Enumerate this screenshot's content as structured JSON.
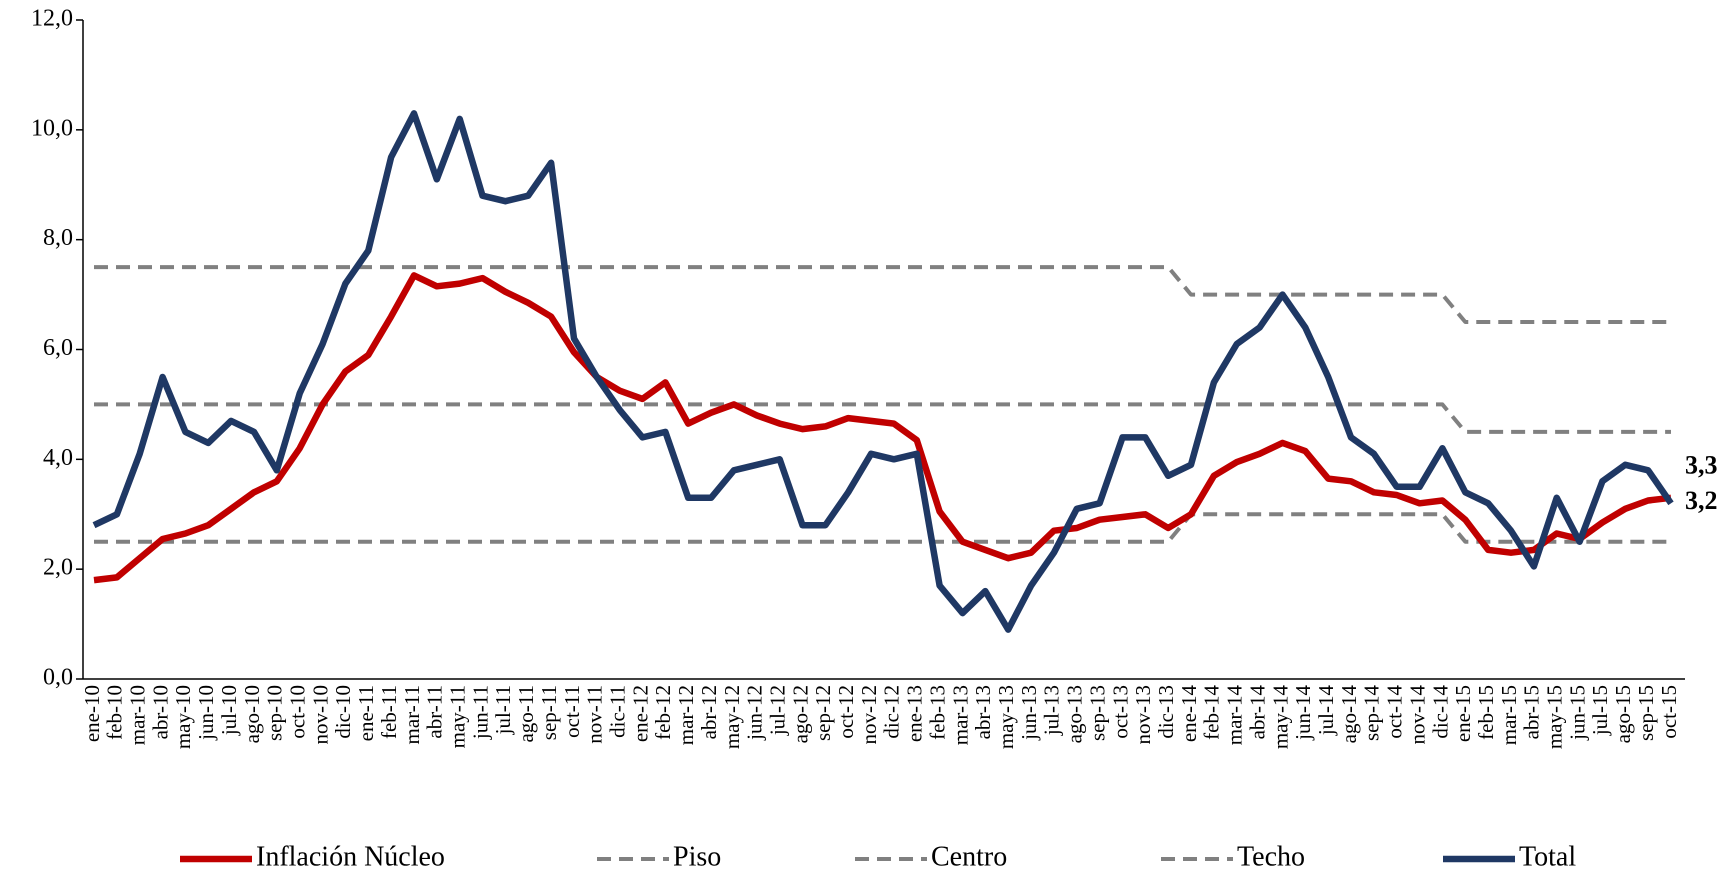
{
  "chart_data": {
    "type": "line",
    "categories": [
      "ene-10",
      "feb-10",
      "mar-10",
      "abr-10",
      "may-10",
      "jun-10",
      "jul-10",
      "ago-10",
      "sep-10",
      "oct-10",
      "nov-10",
      "dic-10",
      "ene-11",
      "feb-11",
      "mar-11",
      "abr-11",
      "may-11",
      "jun-11",
      "jul-11",
      "ago-11",
      "sep-11",
      "oct-11",
      "nov-11",
      "dic-11",
      "ene-12",
      "feb-12",
      "mar-12",
      "abr-12",
      "may-12",
      "jun-12",
      "jul-12",
      "ago-12",
      "sep-12",
      "oct-12",
      "nov-12",
      "dic-12",
      "ene-13",
      "feb-13",
      "mar-13",
      "abr-13",
      "may-13",
      "jun-13",
      "jul-13",
      "ago-13",
      "sep-13",
      "oct-13",
      "nov-13",
      "dic-13",
      "ene-14",
      "feb-14",
      "mar-14",
      "abr-14",
      "may-14",
      "jun-14",
      "jul-14",
      "ago-14",
      "sep-14",
      "oct-14",
      "nov-14",
      "dic-14",
      "ene-15",
      "feb-15",
      "mar-15",
      "abr-15",
      "may-15",
      "jun-15",
      "jul-15",
      "ago-15",
      "sep-15",
      "oct-15"
    ],
    "ylim": [
      0,
      12
    ],
    "yticks": [
      {
        "value": 0,
        "label": "0,0"
      },
      {
        "value": 2,
        "label": "2,0"
      },
      {
        "value": 4,
        "label": "4,0"
      },
      {
        "value": 6,
        "label": "6,0"
      },
      {
        "value": 8,
        "label": "8,0"
      },
      {
        "value": 10,
        "label": "10,0"
      },
      {
        "value": 12,
        "label": "12,0"
      }
    ],
    "legend": "bottom",
    "series": [
      {
        "name": "Inflación Núcleo",
        "color": "#c00000",
        "dash": false,
        "values": [
          1.8,
          1.85,
          2.2,
          2.55,
          2.65,
          2.8,
          3.1,
          3.4,
          3.6,
          4.2,
          5.0,
          5.6,
          5.9,
          6.6,
          7.35,
          7.15,
          7.2,
          7.3,
          7.05,
          6.85,
          6.6,
          5.95,
          5.5,
          5.25,
          5.1,
          5.4,
          4.65,
          4.85,
          5.0,
          4.8,
          4.65,
          4.55,
          4.6,
          4.75,
          4.7,
          4.65,
          4.35,
          3.05,
          2.5,
          2.35,
          2.2,
          2.3,
          2.7,
          2.75,
          2.9,
          2.95,
          3.0,
          2.75,
          3.0,
          3.7,
          3.95,
          4.1,
          4.3,
          4.15,
          3.65,
          3.6,
          3.4,
          3.35,
          3.2,
          3.25,
          2.9,
          2.35,
          2.3,
          2.35,
          2.65,
          2.55,
          2.85,
          3.1,
          3.25,
          3.3
        ],
        "value_labels": [
          null,
          null,
          null,
          null,
          null,
          null,
          null,
          null,
          null,
          null,
          null,
          null,
          null,
          null,
          null,
          null,
          null,
          null,
          null,
          null,
          null,
          null,
          null,
          null,
          null,
          null,
          null,
          null,
          null,
          null,
          null,
          null,
          null,
          null,
          null,
          null,
          null,
          null,
          null,
          null,
          null,
          null,
          null,
          null,
          null,
          null,
          null,
          null,
          null,
          null,
          null,
          null,
          null,
          null,
          null,
          null,
          null,
          null,
          null,
          null,
          null,
          null,
          null,
          null,
          null,
          null,
          null,
          null,
          null,
          "3,3"
        ]
      },
      {
        "name": "Piso",
        "color": "#808080",
        "dash": true,
        "values": [
          2.5,
          2.5,
          2.5,
          2.5,
          2.5,
          2.5,
          2.5,
          2.5,
          2.5,
          2.5,
          2.5,
          2.5,
          2.5,
          2.5,
          2.5,
          2.5,
          2.5,
          2.5,
          2.5,
          2.5,
          2.5,
          2.5,
          2.5,
          2.5,
          2.5,
          2.5,
          2.5,
          2.5,
          2.5,
          2.5,
          2.5,
          2.5,
          2.5,
          2.5,
          2.5,
          2.5,
          2.5,
          2.5,
          2.5,
          2.5,
          2.5,
          2.5,
          2.5,
          2.5,
          2.5,
          2.5,
          2.5,
          2.5,
          3.0,
          3.0,
          3.0,
          3.0,
          3.0,
          3.0,
          3.0,
          3.0,
          3.0,
          3.0,
          3.0,
          3.0,
          2.5,
          2.5,
          2.5,
          2.5,
          2.5,
          2.5,
          2.5,
          2.5,
          2.5,
          2.5
        ]
      },
      {
        "name": "Centro",
        "color": "#808080",
        "dash": true,
        "values": [
          5.0,
          5.0,
          5.0,
          5.0,
          5.0,
          5.0,
          5.0,
          5.0,
          5.0,
          5.0,
          5.0,
          5.0,
          5.0,
          5.0,
          5.0,
          5.0,
          5.0,
          5.0,
          5.0,
          5.0,
          5.0,
          5.0,
          5.0,
          5.0,
          5.0,
          5.0,
          5.0,
          5.0,
          5.0,
          5.0,
          5.0,
          5.0,
          5.0,
          5.0,
          5.0,
          5.0,
          5.0,
          5.0,
          5.0,
          5.0,
          5.0,
          5.0,
          5.0,
          5.0,
          5.0,
          5.0,
          5.0,
          5.0,
          5.0,
          5.0,
          5.0,
          5.0,
          5.0,
          5.0,
          5.0,
          5.0,
          5.0,
          5.0,
          5.0,
          5.0,
          4.5,
          4.5,
          4.5,
          4.5,
          4.5,
          4.5,
          4.5,
          4.5,
          4.5,
          4.5
        ]
      },
      {
        "name": "Techo",
        "color": "#808080",
        "dash": true,
        "values": [
          7.5,
          7.5,
          7.5,
          7.5,
          7.5,
          7.5,
          7.5,
          7.5,
          7.5,
          7.5,
          7.5,
          7.5,
          7.5,
          7.5,
          7.5,
          7.5,
          7.5,
          7.5,
          7.5,
          7.5,
          7.5,
          7.5,
          7.5,
          7.5,
          7.5,
          7.5,
          7.5,
          7.5,
          7.5,
          7.5,
          7.5,
          7.5,
          7.5,
          7.5,
          7.5,
          7.5,
          7.5,
          7.5,
          7.5,
          7.5,
          7.5,
          7.5,
          7.5,
          7.5,
          7.5,
          7.5,
          7.5,
          7.5,
          7.0,
          7.0,
          7.0,
          7.0,
          7.0,
          7.0,
          7.0,
          7.0,
          7.0,
          7.0,
          7.0,
          7.0,
          6.5,
          6.5,
          6.5,
          6.5,
          6.5,
          6.5,
          6.5,
          6.5,
          6.5,
          6.5
        ]
      },
      {
        "name": "Total",
        "color": "#1f3864",
        "dash": false,
        "values": [
          2.8,
          3.0,
          4.1,
          5.5,
          4.5,
          4.3,
          4.7,
          4.5,
          3.8,
          5.2,
          6.1,
          7.2,
          7.8,
          9.5,
          10.3,
          9.1,
          10.2,
          8.8,
          8.7,
          8.8,
          9.4,
          6.2,
          5.5,
          4.9,
          4.4,
          4.5,
          3.3,
          3.3,
          3.8,
          3.9,
          4.0,
          2.8,
          2.8,
          3.4,
          4.1,
          4.0,
          4.1,
          1.7,
          1.2,
          1.6,
          0.9,
          1.7,
          2.3,
          3.1,
          3.2,
          4.4,
          4.4,
          3.7,
          3.9,
          5.4,
          6.1,
          6.4,
          7.0,
          6.4,
          5.5,
          4.4,
          4.1,
          3.5,
          3.5,
          4.2,
          3.4,
          3.2,
          2.7,
          2.05,
          3.3,
          2.5,
          3.6,
          3.9,
          3.8,
          3.2
        ],
        "value_labels": [
          null,
          null,
          null,
          null,
          null,
          null,
          null,
          null,
          null,
          null,
          null,
          null,
          null,
          null,
          null,
          null,
          null,
          null,
          null,
          null,
          null,
          null,
          null,
          null,
          null,
          null,
          null,
          null,
          null,
          null,
          null,
          null,
          null,
          null,
          null,
          null,
          null,
          null,
          null,
          null,
          null,
          null,
          null,
          null,
          null,
          null,
          null,
          null,
          null,
          null,
          null,
          null,
          null,
          null,
          null,
          null,
          null,
          null,
          null,
          null,
          null,
          null,
          null,
          null,
          null,
          null,
          null,
          null,
          null,
          "3,2"
        ]
      }
    ]
  }
}
